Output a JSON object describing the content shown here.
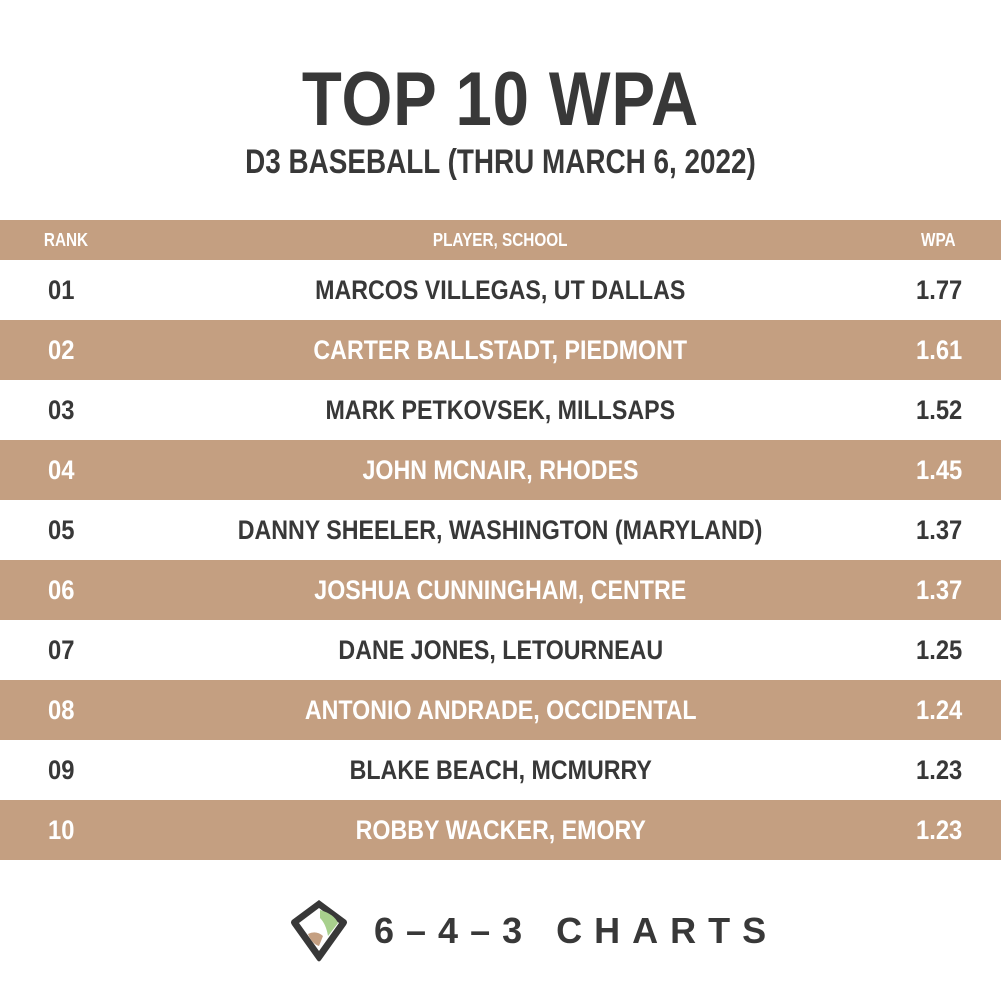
{
  "chart_data": {
    "type": "table",
    "title": "TOP 10 WPA",
    "subtitle": "D3 BASEBALL (THRU MARCH 6, 2022)",
    "columns": [
      "RANK",
      "PLAYER, SCHOOL",
      "WPA"
    ],
    "rows": [
      {
        "rank": "01",
        "player": "MARCOS VILLEGAS, UT DALLAS",
        "wpa": "1.77"
      },
      {
        "rank": "02",
        "player": "CARTER BALLSTADT, PIEDMONT",
        "wpa": "1.61"
      },
      {
        "rank": "03",
        "player": "MARK PETKOVSEK, MILLSAPS",
        "wpa": "1.52"
      },
      {
        "rank": "04",
        "player": "JOHN MCNAIR, RHODES",
        "wpa": "1.45"
      },
      {
        "rank": "05",
        "player": "DANNY SHEELER, WASHINGTON (MARYLAND)",
        "wpa": "1.37"
      },
      {
        "rank": "06",
        "player": "JOSHUA CUNNINGHAM, CENTRE",
        "wpa": "1.37"
      },
      {
        "rank": "07",
        "player": "DANE JONES, LETOURNEAU",
        "wpa": "1.25"
      },
      {
        "rank": "08",
        "player": "ANTONIO ANDRADE, OCCIDENTAL",
        "wpa": "1.24"
      },
      {
        "rank": "09",
        "player": "BLAKE BEACH, MCMURRY",
        "wpa": "1.23"
      },
      {
        "rank": "10",
        "player": "ROBBY WACKER, EMORY",
        "wpa": "1.23"
      }
    ]
  },
  "footer": {
    "brand": "6–4–3 CHARTS",
    "logo_icon": "baseball-diamond-icon"
  },
  "colors": {
    "band": "#c49f81",
    "text_dark": "#383838",
    "text_light": "#ffffff",
    "logo_green": "#a8d08d",
    "logo_tan": "#c49f81"
  }
}
